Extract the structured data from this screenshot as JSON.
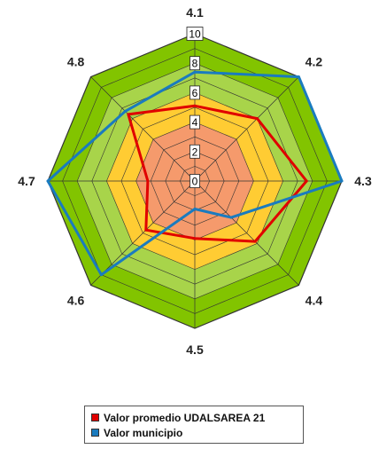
{
  "chart_data": {
    "type": "radar",
    "categories": [
      "4.1",
      "4.2",
      "4.3",
      "4.4",
      "4.5",
      "4.6",
      "4.7",
      "4.8"
    ],
    "ticks": [
      "0",
      "2",
      "4",
      "6",
      "8",
      "10"
    ],
    "rlim": [
      0,
      10
    ],
    "bands": [
      {
        "from": 0,
        "to": 4,
        "color": "#f59a6c"
      },
      {
        "from": 4,
        "to": 6,
        "color": "#ffcc33"
      },
      {
        "from": 6,
        "to": 8,
        "color": "#a8d44a"
      },
      {
        "from": 8,
        "to": 10,
        "color": "#82c400"
      }
    ],
    "series": [
      {
        "name": "Valor promedio UDALSAREA 21",
        "color": "#e00000",
        "values": [
          5.1,
          6.0,
          7.6,
          5.8,
          3.9,
          4.7,
          3.2,
          6.4
        ]
      },
      {
        "name": "Valor municipio",
        "color": "#1a7bbf",
        "values": [
          7.4,
          10.0,
          10.0,
          3.5,
          1.9,
          9.0,
          10.0,
          6.7
        ]
      }
    ],
    "legend_position": "bottom"
  }
}
